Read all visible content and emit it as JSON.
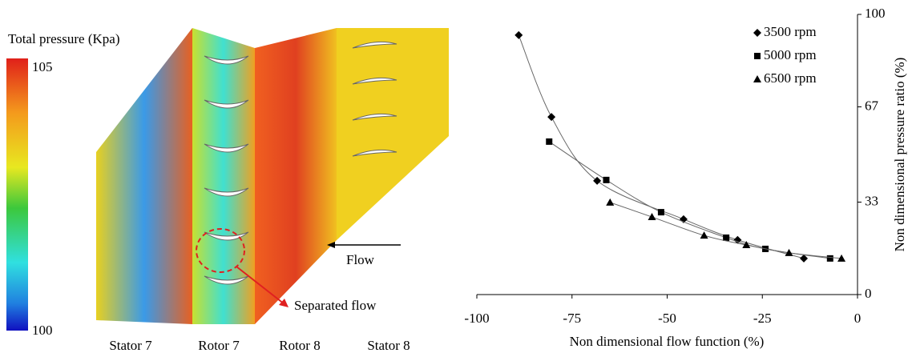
{
  "contour": {
    "colorbar_title": "Total pressure (Kpa)",
    "colorbar_ticks": [
      105,
      100
    ],
    "labels": [
      "Stator 7",
      "Rotor 7",
      "Rotor 8",
      "Stator 8"
    ],
    "flow_label": "Flow",
    "annotation": "Separated flow"
  },
  "chart_data": {
    "type": "line",
    "xlabel": "Non dimensional flow function (%)",
    "ylabel": "Non dimensional pressure ratio (%)",
    "xlim": [
      -100,
      0
    ],
    "xticks": [
      -100,
      -75,
      -50,
      -25,
      0
    ],
    "ylim": [
      0,
      100
    ],
    "yticks": [
      0,
      33,
      67,
      100
    ],
    "legend": "upper right",
    "series": [
      {
        "name": "3500 rpm",
        "color": "#000000",
        "marker": "diamond",
        "x": [
          -89,
          -80.4,
          -68.4,
          -45.7,
          -31.5,
          -14.1
        ],
        "values": [
          92.6,
          63.4,
          40.6,
          26.9,
          19.5,
          12.9
        ]
      },
      {
        "name": "5000 rpm",
        "color": "#000000",
        "marker": "square",
        "x": [
          -81,
          -66,
          -51.6,
          -34.5,
          -24.2,
          -7.2
        ],
        "values": [
          54.6,
          40.9,
          29.4,
          20.3,
          16.3,
          12.9
        ]
      },
      {
        "name": "6500 rpm",
        "color": "#000000",
        "marker": "triangle",
        "x": [
          -65,
          -54,
          -40.3,
          -29.2,
          -18,
          -4.2
        ],
        "values": [
          32.9,
          27.7,
          21.1,
          17.7,
          14.9,
          12.9
        ]
      }
    ]
  }
}
